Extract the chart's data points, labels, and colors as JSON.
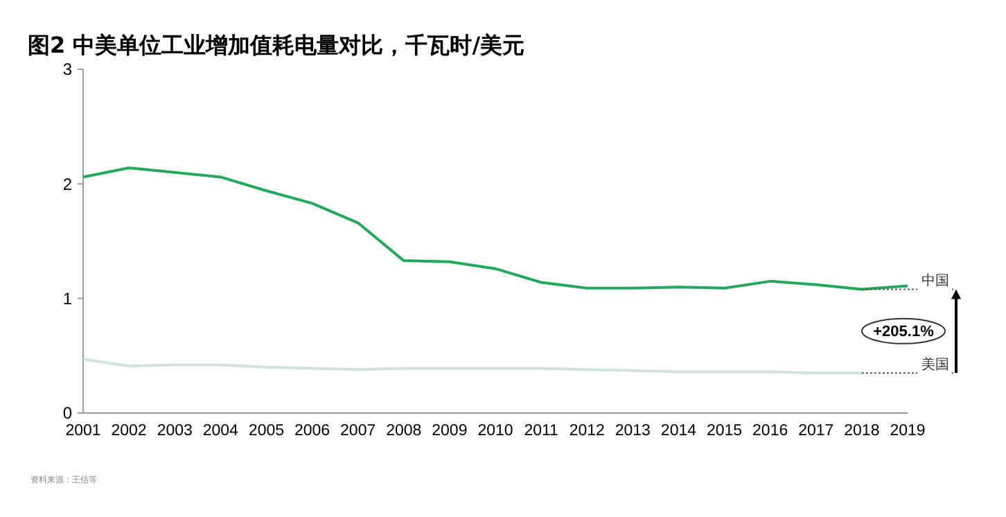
{
  "chart_data": {
    "type": "line",
    "title": "图2 中美单位工业增加值耗电量对比，千瓦时/美元",
    "categories": [
      "2001",
      "2002",
      "2003",
      "2004",
      "2005",
      "2006",
      "2007",
      "2008",
      "2009",
      "2010",
      "2011",
      "2012",
      "2013",
      "2014",
      "2015",
      "2016",
      "2017",
      "2018",
      "2019"
    ],
    "series": [
      {
        "name": "中国",
        "color": "#23a85c",
        "values": [
          2.06,
          2.14,
          2.1,
          2.06,
          1.94,
          1.83,
          1.66,
          1.33,
          1.32,
          1.26,
          1.14,
          1.09,
          1.09,
          1.1,
          1.09,
          1.15,
          1.12,
          1.08,
          1.11
        ]
      },
      {
        "name": "美国",
        "color": "#cfe2dc",
        "values": [
          0.47,
          0.41,
          0.42,
          0.42,
          0.4,
          0.39,
          0.38,
          0.39,
          0.39,
          0.39,
          0.39,
          0.38,
          0.37,
          0.36,
          0.36,
          0.36,
          0.35,
          0.35,
          null
        ]
      }
    ],
    "ylim": [
      0,
      3
    ],
    "yticks": [
      0,
      1,
      2,
      3
    ],
    "grid": false,
    "annotations": [
      "+205.1%",
      "资料来源：王信等"
    ]
  }
}
